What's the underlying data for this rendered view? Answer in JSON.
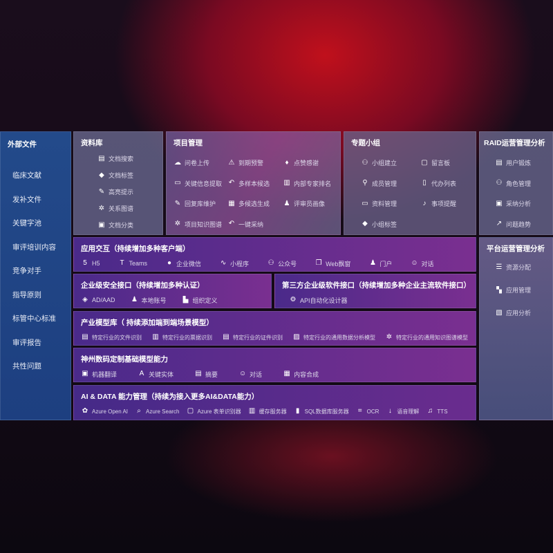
{
  "external": {
    "title": "外部文件",
    "items": [
      "临床文献",
      "发补文件",
      "关键字池",
      "审评培训内容",
      "竞争对手",
      "指导原则",
      "标管中心标准",
      "审评报告",
      "共性问题"
    ]
  },
  "library": {
    "title": "资料库",
    "items": [
      {
        "icon": "doc-search-icon",
        "label": "文档搜索"
      },
      {
        "icon": "tag-icon",
        "label": "文档标签"
      },
      {
        "icon": "pen-icon",
        "label": "高亮提示"
      },
      {
        "icon": "graph-icon",
        "label": "关系图谱"
      },
      {
        "icon": "doc-classify-icon",
        "label": "文档分类"
      }
    ]
  },
  "project": {
    "title": "项目管理",
    "items": [
      {
        "icon": "upload-icon",
        "label": "问卷上传"
      },
      {
        "icon": "alarm-icon",
        "label": "到期预警"
      },
      {
        "icon": "thumbs-up-icon",
        "label": "点赞感谢"
      },
      {
        "icon": "extract-icon",
        "label": "关键信息提取"
      },
      {
        "icon": "reply-icon",
        "label": "多样本候选"
      },
      {
        "icon": "rank-icon",
        "label": "内部专家排名"
      },
      {
        "icon": "edit-icon",
        "label": "回复库维护"
      },
      {
        "icon": "puzzle-icon",
        "label": "多候选生成"
      },
      {
        "icon": "person-icon",
        "label": "评审员画像"
      },
      {
        "icon": "graph-icon",
        "label": "项目知识图谱"
      },
      {
        "icon": "reply-icon",
        "label": "一键采纳"
      }
    ]
  },
  "group": {
    "title": "专题小组",
    "items": [
      {
        "icon": "group-icon",
        "label": "小组建立"
      },
      {
        "icon": "bbs-icon",
        "label": "留言板"
      },
      {
        "icon": "user-add-icon",
        "label": "成员管理"
      },
      {
        "icon": "clipboard-icon",
        "label": "代办列表"
      },
      {
        "icon": "folder-icon",
        "label": "资料管理"
      },
      {
        "icon": "bell-icon",
        "label": "事项提醒"
      },
      {
        "icon": "tag-icon",
        "label": "小组标签"
      }
    ]
  },
  "raid": {
    "title": "RAID运营管理分析",
    "items": [
      {
        "icon": "id-card-icon",
        "label": "用户锻炼"
      },
      {
        "icon": "users-icon",
        "label": "角色管理"
      },
      {
        "icon": "qa-icon",
        "label": "采纳分析"
      },
      {
        "icon": "trend-icon",
        "label": "问题趋势"
      }
    ]
  },
  "platform": {
    "title": "平台运营管理分析",
    "items": [
      {
        "icon": "list-icon",
        "label": "资源分配"
      },
      {
        "icon": "apps-icon",
        "label": "应用管理"
      },
      {
        "icon": "analysis-icon",
        "label": "应用分析"
      }
    ]
  },
  "app": {
    "title": "应用交互（持续增加多种客户端）",
    "items": [
      {
        "icon": "html5-icon",
        "label": "H5"
      },
      {
        "icon": "teams-icon",
        "label": "Teams"
      },
      {
        "icon": "wechat-icon",
        "label": "企业微信"
      },
      {
        "icon": "miniprogram-icon",
        "label": "小程序"
      },
      {
        "icon": "users-icon",
        "label": "公众号"
      },
      {
        "icon": "window-icon",
        "label": "Web飘窗"
      },
      {
        "icon": "portal-icon",
        "label": "门户"
      },
      {
        "icon": "chat-icon",
        "label": "对话"
      }
    ]
  },
  "security": {
    "title": "企业级安全接口（持续增加多种认证）",
    "items": [
      {
        "icon": "ad-icon",
        "label": "AD/AAD"
      },
      {
        "icon": "account-icon",
        "label": "本地账号"
      },
      {
        "icon": "org-icon",
        "label": "组织定义"
      }
    ]
  },
  "third": {
    "title": "第三方企业级软件接口（持续增加多种企业主流软件接口）",
    "items": [
      {
        "icon": "gear-icon",
        "label": "API自动化设计器"
      }
    ]
  },
  "industry": {
    "title": "产业模型库（ 持续添加端到端场景模型）",
    "items": [
      {
        "icon": "doc-icon",
        "label": "特定行业的文件识别"
      },
      {
        "icon": "receipt-icon",
        "label": "特定行业的票据识别"
      },
      {
        "icon": "id-card-icon",
        "label": "特定行业的证件识别"
      },
      {
        "icon": "chart-icon",
        "label": "特定行业的通用数据分析模型"
      },
      {
        "icon": "graph-icon",
        "label": "特定行业的通用知识图谱模型"
      }
    ]
  },
  "base": {
    "title": "神州数码定制基础模型能力",
    "items": [
      {
        "icon": "translate-icon",
        "label": "机器翻译"
      },
      {
        "icon": "entity-icon",
        "label": "关键实体"
      },
      {
        "icon": "summary-icon",
        "label": "摘要"
      },
      {
        "icon": "chat-icon",
        "label": "对话"
      },
      {
        "icon": "puzzle-icon",
        "label": "内容合成"
      }
    ]
  },
  "ai": {
    "title": "AI & DATA 能力管理（持续为接入更多AI&DATA能力）",
    "items": [
      {
        "icon": "openai-icon",
        "label": "Azure Open AI"
      },
      {
        "icon": "search-icon",
        "label": "Azure Search"
      },
      {
        "icon": "form-icon",
        "label": "Azure 表单识别器"
      },
      {
        "icon": "cache-icon",
        "label": "缓存服务器"
      },
      {
        "icon": "sql-icon",
        "label": "SQL数据库服务器"
      },
      {
        "icon": "ocr-icon",
        "label": "OCR"
      },
      {
        "icon": "speech-icon",
        "label": "语音理解"
      },
      {
        "icon": "tts-icon",
        "label": "TTS"
      }
    ]
  }
}
